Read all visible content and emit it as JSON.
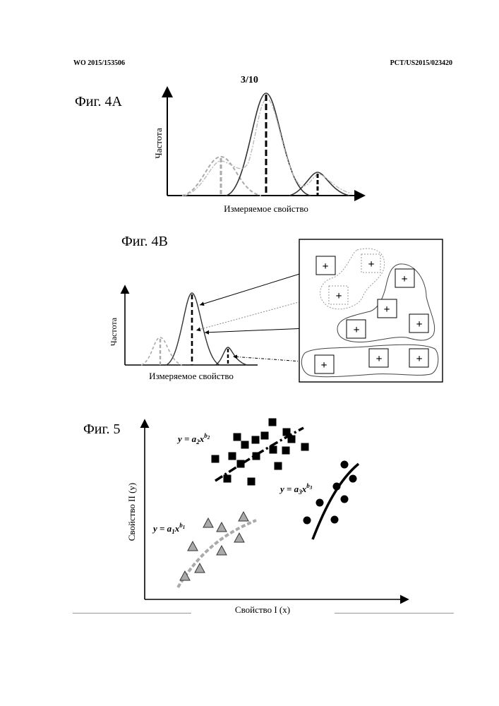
{
  "header": {
    "left": "WO 2015/153506",
    "right": "PCT/US2015/023420",
    "page": "3/10"
  },
  "figures": {
    "fig4a": {
      "label": "Фиг. 4А",
      "ylabel": "Частота",
      "xlabel": "Измеряемое свойство"
    },
    "fig4b": {
      "label": "Фиг. 4В",
      "ylabel": "Частота",
      "xlabel": "Измеряемое свойство",
      "cluster_symbol": "+"
    },
    "fig5": {
      "label": "Фиг. 5",
      "xlabel": "Свойство I (x)",
      "ylabel": "Свойство II (y)",
      "equations": {
        "eq1": {
          "lhs": "y = a",
          "sub1": "1",
          "mid": "x",
          "sup": "b",
          "sub2": "1"
        },
        "eq2": {
          "lhs": "y = a",
          "sub1": "2",
          "mid": "x",
          "sup": "b",
          "sub2": "2"
        },
        "eq3": {
          "lhs": "y = a",
          "sub1": "3",
          "mid": "x",
          "sup": "b",
          "sub2": "3"
        }
      }
    }
  },
  "chart_data": [
    {
      "type": "scatter",
      "title": "",
      "xlabel": "Свойство I (x)",
      "ylabel": "Свойство II (y)",
      "series": [
        {
          "marker": "square",
          "color": "#000000",
          "points": [
            [
              305,
              650
            ],
            [
              322,
              678
            ],
            [
              329,
              646
            ],
            [
              336,
              619
            ],
            [
              341,
              657
            ],
            [
              347,
              630
            ],
            [
              356,
              682
            ],
            [
              362,
              623
            ],
            [
              363,
              646
            ],
            [
              375,
              617
            ],
            [
              386,
              598
            ],
            [
              387,
              637
            ],
            [
              394,
              660
            ],
            [
              406,
              612
            ],
            [
              405,
              638
            ],
            [
              413,
              622
            ],
            [
              432,
              633
            ]
          ]
        },
        {
          "marker": "circle",
          "color": "#000000",
          "points": [
            [
              488,
              658
            ],
            [
              500,
              678
            ],
            [
              477,
              689
            ],
            [
              453,
              712
            ],
            [
              488,
              707
            ],
            [
              435,
              737
            ],
            [
              474,
              736
            ]
          ]
        },
        {
          "marker": "triangle",
          "color": "#aaaaaa",
          "points": [
            [
              295,
              741
            ],
            [
              345,
              732
            ],
            [
              314,
              747
            ],
            [
              339,
              762
            ],
            [
              273,
              774
            ],
            [
              314,
              780
            ],
            [
              283,
              805
            ],
            [
              262,
              816
            ]
          ]
        }
      ]
    }
  ]
}
